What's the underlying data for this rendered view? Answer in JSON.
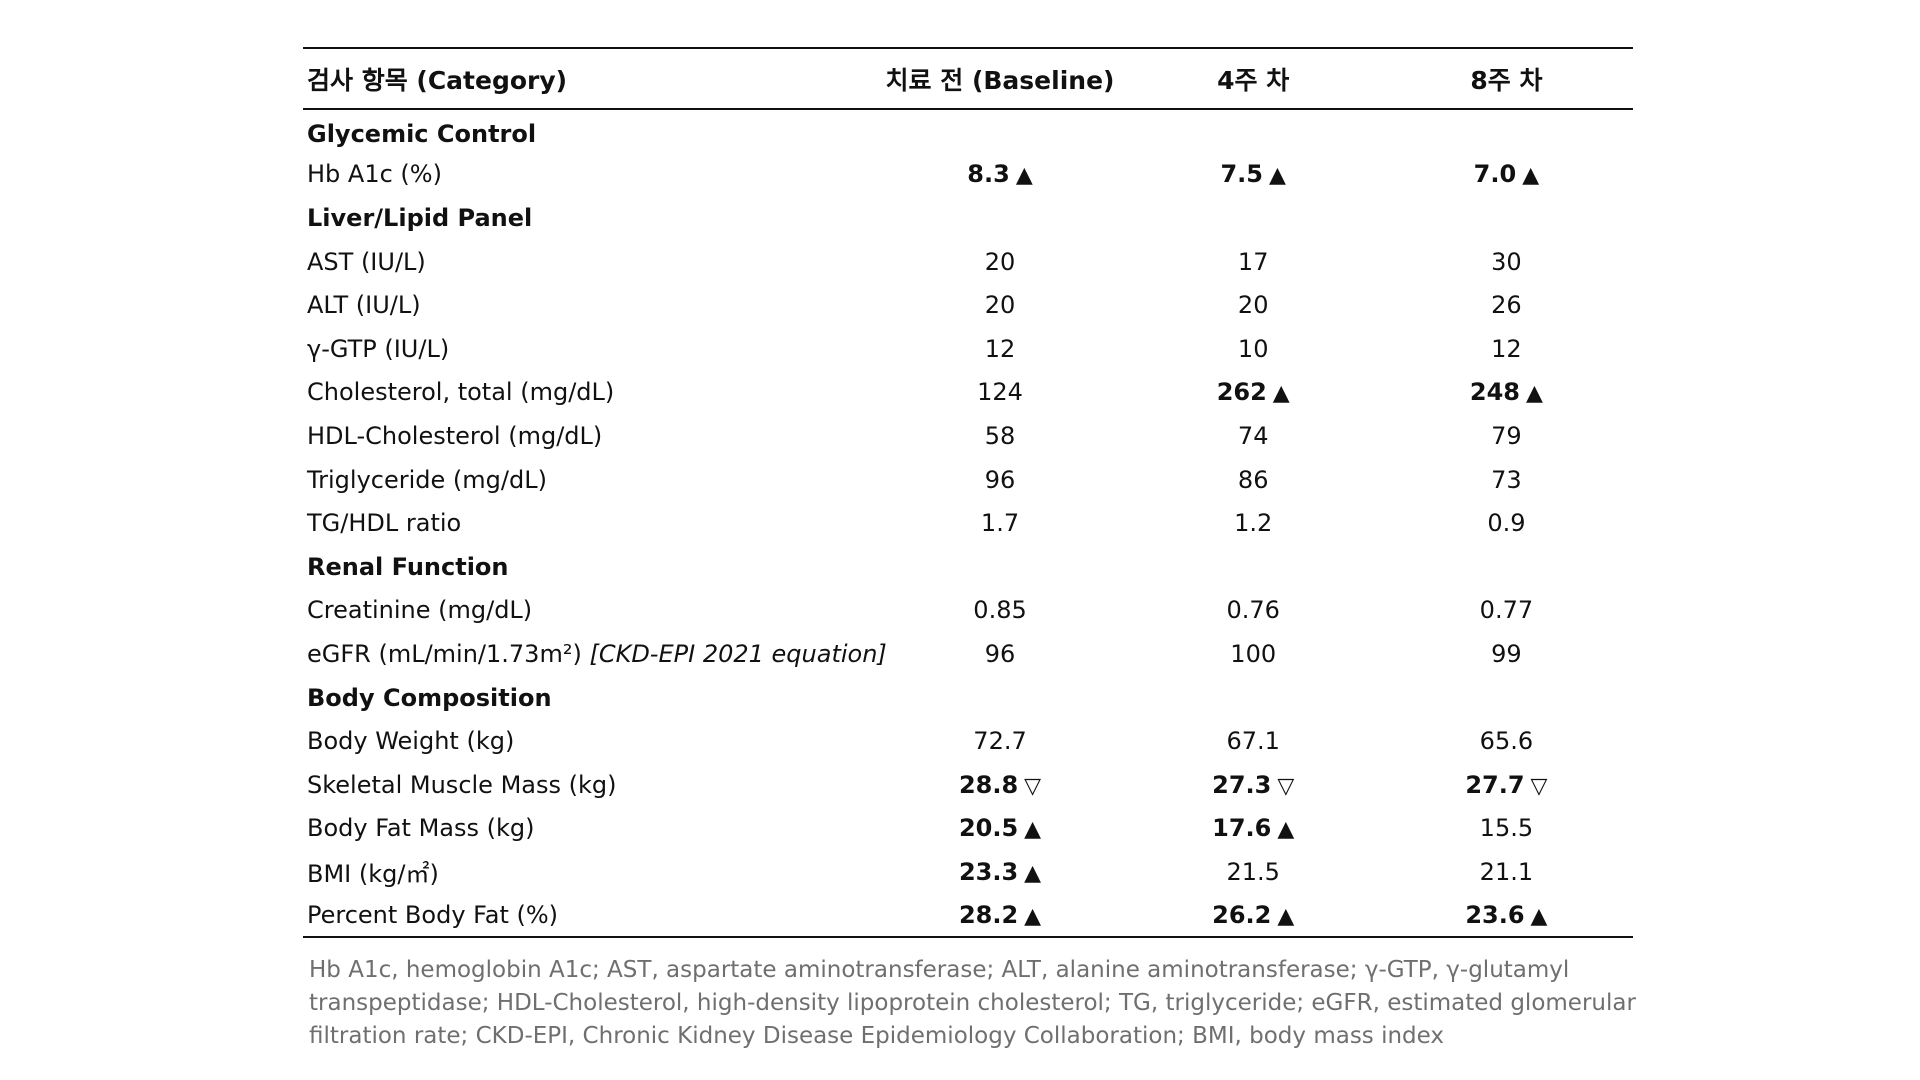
{
  "headers": {
    "category": "검사 항목 (Category)",
    "baseline": "치료 전 (Baseline)",
    "week4": "4주 차",
    "week8": "8주 차"
  },
  "sections": {
    "glycemic": "Glycemic Control",
    "liver": "Liver/Lipid Panel",
    "renal": "Renal Function",
    "body": "Body Composition"
  },
  "rows": {
    "hba1c": {
      "label": "Hb A1c (%)",
      "baseline": "8.3",
      "w4": "7.5",
      "w8": "7.0",
      "baseline_mark": "▲",
      "w4_mark": "▲",
      "w8_mark": "▲"
    },
    "ast": {
      "label": "AST (IU/L)",
      "baseline": "20",
      "w4": "17",
      "w8": "30"
    },
    "alt": {
      "label": "ALT (IU/L)",
      "baseline": "20",
      "w4": "20",
      "w8": "26"
    },
    "ggtp": {
      "label": "γ-GTP (IU/L)",
      "baseline": "12",
      "w4": "10",
      "w8": "12"
    },
    "chol": {
      "label": "Cholesterol, total (mg/dL)",
      "baseline": "124",
      "w4": "262",
      "w8": "248",
      "w4_mark": "▲",
      "w8_mark": "▲"
    },
    "hdl": {
      "label": "HDL-Cholesterol (mg/dL)",
      "baseline": "58",
      "w4": "74",
      "w8": "79"
    },
    "tg": {
      "label": "Triglyceride (mg/dL)",
      "baseline": "96",
      "w4": "86",
      "w8": "73"
    },
    "tghdl": {
      "label": "TG/HDL ratio",
      "baseline": "1.7",
      "w4": "1.2",
      "w8": "0.9"
    },
    "creat": {
      "label": "Creatinine (mg/dL)",
      "baseline": "0.85",
      "w4": "0.76",
      "w8": "0.77"
    },
    "egfr": {
      "label": "eGFR (mL/min/1.73m²)",
      "note": "[CKD-EPI 2021 equation]",
      "baseline": "96",
      "w4": "100",
      "w8": "99"
    },
    "weight": {
      "label": "Body Weight (kg)",
      "baseline": "72.7",
      "w4": "67.1",
      "w8": "65.6"
    },
    "smm": {
      "label": "Skeletal Muscle Mass (kg)",
      "baseline": "28.8",
      "w4": "27.3",
      "w8": "27.7",
      "baseline_mark": "▽",
      "w4_mark": "▽",
      "w8_mark": "▽"
    },
    "bfm": {
      "label": "Body Fat Mass (kg)",
      "baseline": "20.5",
      "w4": "17.6",
      "w8": "15.5",
      "baseline_mark": "▲",
      "w4_mark": "▲"
    },
    "bmi": {
      "label": "BMI (kg/㎡)",
      "baseline": "23.3",
      "w4": "21.5",
      "w8": "21.1",
      "baseline_mark": "▲"
    },
    "pbf": {
      "label": "Percent Body Fat (%)",
      "baseline": "28.2",
      "w4": "26.2",
      "w8": "23.6",
      "baseline_mark": "▲",
      "w4_mark": "▲",
      "w8_mark": "▲"
    }
  },
  "footnote": "Hb A1c, hemoglobin A1c; AST, aspartate aminotransferase; ALT, alanine aminotransferase; γ-GTP, γ-glutamyl transpeptidase; HDL-Cholesterol, high-density lipoprotein cholesterol; TG, triglyceride; eGFR, estimated glomerular filtration rate; CKD-EPI, Chronic Kidney Disease Epidemiology Collaboration; BMI, body mass index",
  "colors": {
    "text": "#111111",
    "footnote": "#6f6f6f",
    "rule": "#111111"
  }
}
